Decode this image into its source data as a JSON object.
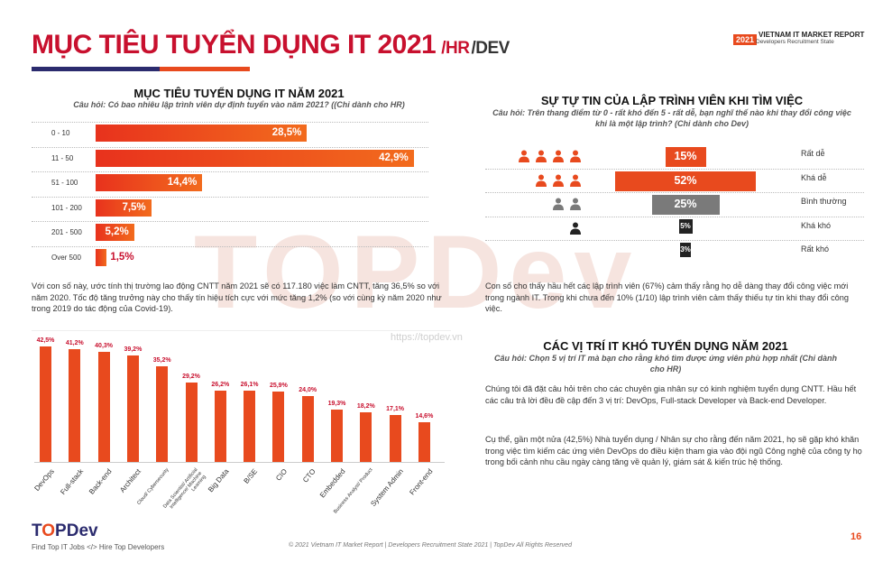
{
  "header": {
    "title": "MỤC TIÊU TUYỂN DỤNG IT 2021",
    "slash1": "/HR",
    "slash2": "/DEV",
    "badge_year": "2021",
    "badge_text": "VIETNAM IT MARKET REPORT",
    "badge_sub": "Developers Recruitment State"
  },
  "watermark": {
    "text": "TOPDev",
    "url": "https://topdev.vn"
  },
  "hiring_goal": {
    "title": "MỤC TIÊU TUYỂN DỤNG IT NĂM 2021",
    "question": "Câu hỏi: Có bao nhiêu lập trình viên dự định tuyển vào năm 2021? ((Chỉ dành cho HR)",
    "paragraph": "Với con số này, ước tính thị trường lao động CNTT năm 2021 sẽ có 117.180 việc làm CNTT, tăng 36,5% so với năm 2020. Tốc độ tăng trưởng này cho thấy tín hiệu tích cực với mức tăng 1,2% (so với cùng kỳ năm 2020 như trong 2019 do tác động của Covid-19)."
  },
  "confidence": {
    "title": "SỰ TỰ TIN CỦA LẬP TRÌNH VIÊN KHI TÌM VIỆC",
    "question": "Câu hỏi: Trên thang điểm từ 0 - rất khó đến 5 - rất dễ, bạn nghĩ thế nào khi thay đổi công việc khi là một lập trình? (Chỉ dành cho Dev)",
    "paragraph": "Con số cho thấy hầu hết các lập trình viên (67%) cảm thấy rằng họ dễ dàng thay đổi công việc mới trong ngành IT. Trong khi chưa đến 10% (1/10) lập trình viên cảm thấy thiếu tự tin khi thay đổi công việc."
  },
  "hard_positions": {
    "title": "CÁC VỊ TRÍ IT KHÓ TUYỂN DỤNG NĂM 2021",
    "question": "Câu hỏi: Chọn 5 vị trí  IT mà bạn cho rằng khó tìm được ứng viên phù hợp nhất (Chỉ dành cho HR)",
    "paragraph1": "Chúng tôi đã đặt câu hỏi trên cho các chuyên gia nhân sự có kinh nghiệm tuyển dụng CNTT. Hầu hết các câu trả lời đều đề cập đến 3 vị trí: DevOps, Full-stack Developer và Back-end Developer.",
    "paragraph2": "Cụ thể, gần một nửa (42,5%) Nhà tuyển dụng / Nhân sự cho rằng đến năm 2021, họ sẽ gặp khó khăn trong việc tìm kiếm các ứng viên DevOps do điều kiện tham gia vào đội ngũ Công nghệ của công ty họ trong bối cảnh nhu cầu ngày càng tăng về quản lý, giám sát & kiến trúc hệ thống."
  },
  "chart_data": [
    {
      "type": "bar",
      "orientation": "horizontal",
      "title": "MỤC TIÊU TUYỂN DỤNG IT NĂM 2021",
      "categories": [
        "0 - 10",
        "11 - 50",
        "51 - 100",
        "101 - 200",
        "201 - 500",
        "Over 500"
      ],
      "values": [
        28.5,
        42.9,
        14.4,
        7.5,
        5.2,
        1.5
      ],
      "labels": [
        "28,5%",
        "42,9%",
        "14,4%",
        "7,5%",
        "5,2%",
        "1,5%"
      ],
      "xlim": [
        0,
        45
      ]
    },
    {
      "type": "bar",
      "orientation": "horizontal-centered",
      "title": "SỰ TỰ TIN CỦA LẬP TRÌNH VIÊN KHI TÌM VIỆC",
      "categories": [
        "Rất dễ",
        "Khá dễ",
        "Bình thường",
        "Khá khó",
        "Rất khó"
      ],
      "values": [
        15,
        52,
        25,
        5,
        3
      ],
      "labels": [
        "15%",
        "52%",
        "25%",
        "5%",
        "3%"
      ],
      "icons": [
        4,
        3,
        2,
        1,
        0
      ],
      "colors": [
        "#e84a1e",
        "#e84a1e",
        "#7a7a7a",
        "#222222",
        "#222222"
      ]
    },
    {
      "type": "bar",
      "orientation": "vertical",
      "title": "CÁC VỊ TRÍ IT KHÓ TUYỂN DỤNG NĂM 2021",
      "categories": [
        "DevOps",
        "Full-stack",
        "Back-end",
        "Architect",
        "Cloud/ Cybersecurity",
        "Data Scientist/ Artificial Intelligence/ Machine Learning",
        "Big Data",
        "B/SE",
        "CIO",
        "CTO",
        "Embedded",
        "Business Analyst/ Product",
        "System Admin",
        "Front-end"
      ],
      "values": [
        42.5,
        41.2,
        40.3,
        39.2,
        35.2,
        29.2,
        26.2,
        26.1,
        25.9,
        24.0,
        19.3,
        18.2,
        17.1,
        14.6
      ],
      "labels": [
        "42,5%",
        "41,2%",
        "40,3%",
        "39,2%",
        "35,2%",
        "29,2%",
        "26,2%",
        "26,1%",
        "25,9%",
        "24,0%",
        "19,3%",
        "18,2%",
        "17,1%",
        "14,6%"
      ],
      "ylim": [
        0,
        45
      ]
    }
  ],
  "footer": {
    "logo_a": "T",
    "logo_o": "O",
    "logo_b": "PDev",
    "sub": "Find Top IT Jobs  </>  Hire Top Developers",
    "copyright": "© 2021 Vietnam IT Market Report | Developers Recruitment State 2021 | TopDev All Rights Reserved",
    "page": "16"
  }
}
